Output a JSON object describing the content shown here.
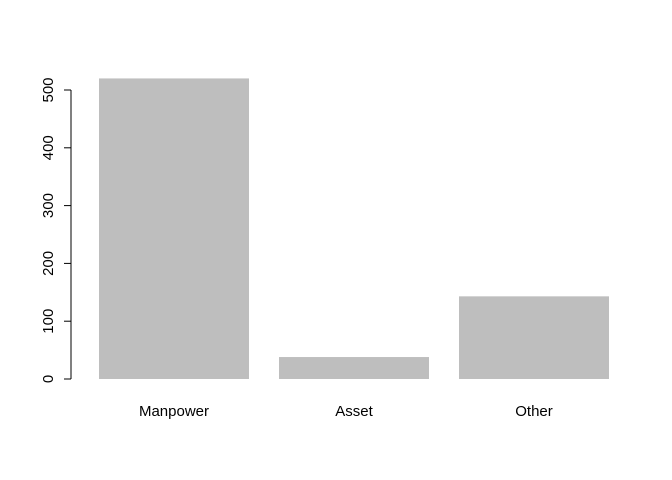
{
  "chart_data": {
    "type": "bar",
    "categories": [
      "Manpower",
      "Asset",
      "Other"
    ],
    "values": [
      520,
      38,
      143
    ],
    "title": "",
    "xlabel": "",
    "ylabel": "",
    "ylim": [
      0,
      500
    ],
    "y_ticks": [
      0,
      100,
      200,
      300,
      400,
      500
    ],
    "y_tick_labels": [
      "0",
      "100",
      "200",
      "300",
      "400",
      "500"
    ],
    "grid": false,
    "legend": "none",
    "bar_color": "#bebebe"
  }
}
